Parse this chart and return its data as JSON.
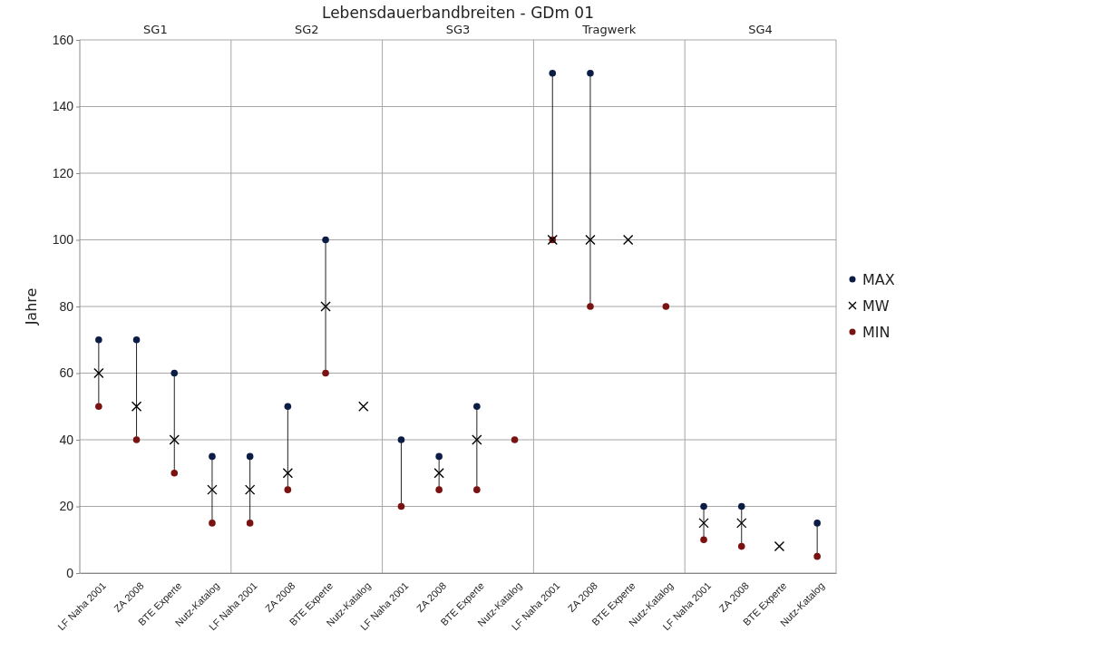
{
  "chart_data": {
    "type": "scatter",
    "title": "Lebensdauerbandbreiten - GDm 01",
    "ylabel": "Jahre",
    "categories": [
      "LF Naha 2001",
      "ZA 2008",
      "BTE Experte",
      "Nutz-Katalog",
      "LF Naha 2001",
      "ZA 2008",
      "BTE Experte",
      "Nutz-Katalog",
      "LF Naha 2001",
      "ZA 2008",
      "BTE Experte",
      "Nutz-Katalog",
      "LF Naha 2001",
      "ZA 2008",
      "BTE Experte",
      "Nutz-Katalog",
      "LF Naha 2001",
      "ZA 2008",
      "BTE Experte",
      "Nutz-Katalog"
    ],
    "annotations": [
      "SG1",
      "SG2",
      "SG3",
      "Tragwerk",
      "SG4"
    ],
    "series": [
      {
        "name": "MAX",
        "color": "#0b1d45",
        "marker": "circle",
        "values": [
          70,
          70,
          60,
          35,
          35,
          50,
          100,
          null,
          40,
          35,
          50,
          null,
          150,
          150,
          null,
          null,
          20,
          20,
          null,
          15
        ]
      },
      {
        "name": "MW",
        "color": "#000000",
        "marker": "cross",
        "values": [
          60,
          50,
          40,
          25,
          25,
          30,
          80,
          50,
          null,
          30,
          40,
          null,
          100,
          100,
          100,
          null,
          15,
          15,
          8,
          null
        ]
      },
      {
        "name": "MIN",
        "color": "#7a1212",
        "marker": "circle",
        "values": [
          50,
          40,
          30,
          15,
          15,
          25,
          60,
          null,
          20,
          25,
          25,
          40,
          100,
          80,
          null,
          80,
          10,
          8,
          null,
          5
        ]
      }
    ],
    "ylim": [
      0,
      160
    ],
    "yticks": [
      0,
      20,
      40,
      60,
      80,
      100,
      120,
      140,
      160
    ],
    "grid": true,
    "legend": "right"
  }
}
